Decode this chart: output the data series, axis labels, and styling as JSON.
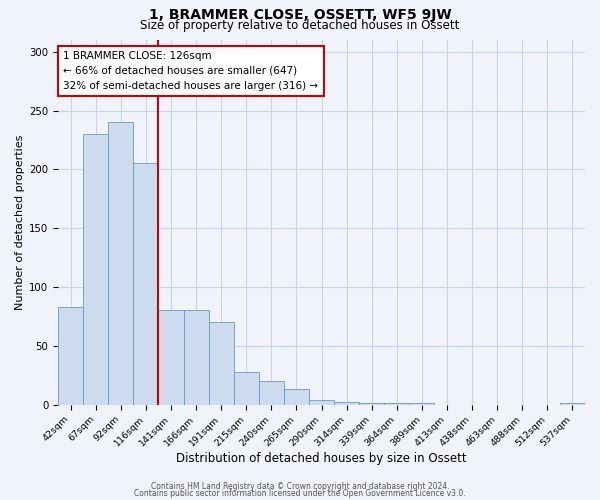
{
  "title": "1, BRAMMER CLOSE, OSSETT, WF5 9JW",
  "subtitle": "Size of property relative to detached houses in Ossett",
  "xlabel": "Distribution of detached houses by size in Ossett",
  "ylabel": "Number of detached properties",
  "bin_labels": [
    "42sqm",
    "67sqm",
    "92sqm",
    "116sqm",
    "141sqm",
    "166sqm",
    "191sqm",
    "215sqm",
    "240sqm",
    "265sqm",
    "290sqm",
    "314sqm",
    "339sqm",
    "364sqm",
    "389sqm",
    "413sqm",
    "438sqm",
    "463sqm",
    "488sqm",
    "512sqm",
    "537sqm"
  ],
  "bar_heights": [
    83,
    230,
    240,
    205,
    80,
    80,
    70,
    28,
    20,
    13,
    4,
    2,
    1,
    1,
    1,
    0,
    0,
    0,
    0,
    0,
    1
  ],
  "bar_color": "#ccdcee",
  "bar_edge_color": "#6699cc",
  "ylim": [
    0,
    310
  ],
  "yticks": [
    0,
    50,
    100,
    150,
    200,
    250,
    300
  ],
  "red_line_bin": 3,
  "annotation_title": "1 BRAMMER CLOSE: 126sqm",
  "annotation_line1": "← 66% of detached houses are smaller (647)",
  "annotation_line2": "32% of semi-detached houses are larger (316) →",
  "annotation_box_color": "#ffffff",
  "annotation_box_edge_color": "#cc0000",
  "red_line_color": "#cc0000",
  "footer1": "Contains HM Land Registry data © Crown copyright and database right 2024.",
  "footer2": "Contains public sector information licensed under the Open Government Licence v3.0.",
  "background_color": "#f0f4fa",
  "grid_color": "#c8d4e8",
  "title_fontsize": 10,
  "subtitle_fontsize": 8.5,
  "xlabel_fontsize": 8.5,
  "ylabel_fontsize": 8,
  "tick_fontsize": 6.8,
  "annotation_fontsize": 7.5,
  "footer_fontsize": 5.5
}
